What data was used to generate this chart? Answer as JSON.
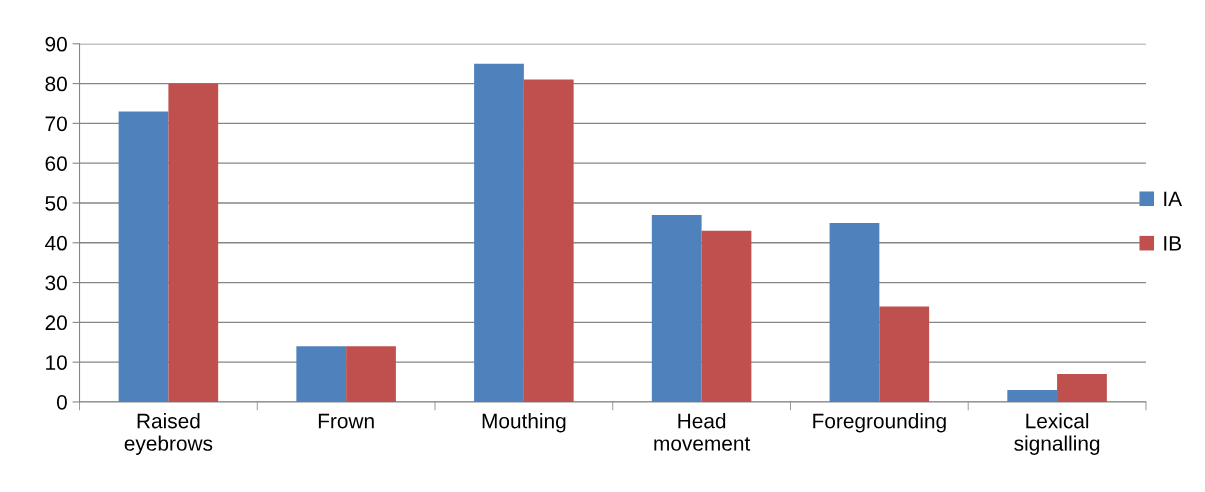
{
  "chart_data": {
    "type": "bar",
    "categories": [
      "Raised\neyebrows",
      "Frown",
      "Mouthing",
      "Head\nmovement",
      "Foregrounding",
      "Lexical\nsignalling"
    ],
    "series": [
      {
        "name": "IA",
        "color": "#4f81bd",
        "values": [
          73,
          14,
          85,
          47,
          45,
          3
        ]
      },
      {
        "name": "IB",
        "color": "#c0504d",
        "values": [
          80,
          14,
          81,
          43,
          24,
          7
        ]
      }
    ],
    "ylim": [
      0,
      90
    ],
    "yticks": [
      0,
      10,
      20,
      30,
      40,
      50,
      60,
      70,
      80,
      90
    ],
    "grid": "y",
    "legend": "right"
  }
}
